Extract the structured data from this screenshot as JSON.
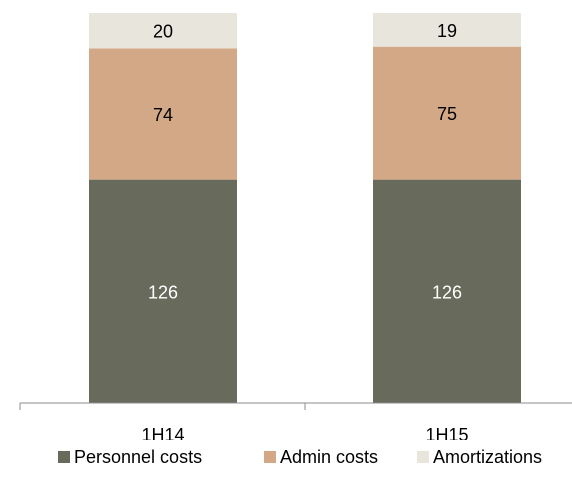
{
  "chart_data": {
    "type": "bar",
    "stacked": true,
    "categories": [
      "1H14",
      "1H15"
    ],
    "series": [
      {
        "name": "Personnel costs",
        "values": [
          126,
          126
        ],
        "color": "#686a5c",
        "label_color": "#ffffff"
      },
      {
        "name": "Admin costs",
        "values": [
          74,
          75
        ],
        "color": "#d2a886",
        "label_color": "#000000"
      },
      {
        "name": "Amortizations",
        "values": [
          20,
          19
        ],
        "color": "#e8e5dc",
        "label_color": "#000000"
      }
    ],
    "title": "",
    "xlabel": "",
    "ylabel": "",
    "ylim": [
      0,
      220
    ],
    "grid": false,
    "legend_position": "bottom"
  }
}
